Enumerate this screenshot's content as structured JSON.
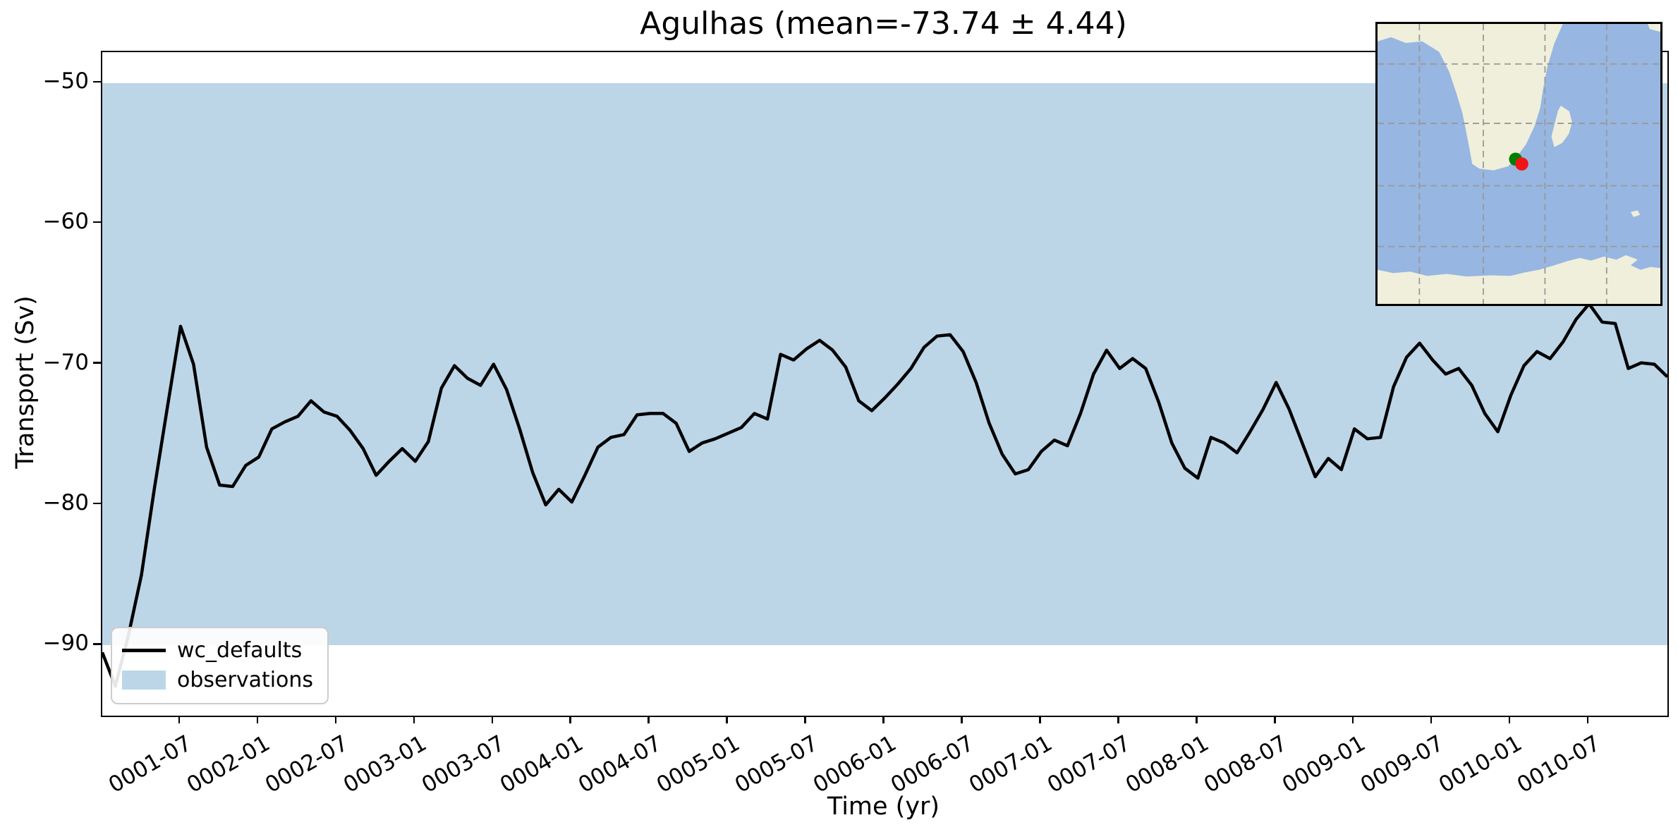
{
  "title": "Agulhas (mean=-73.74 ± 4.44)",
  "mean": -73.74,
  "std": 4.44,
  "legend": {
    "items": [
      {
        "label": "wc_defaults",
        "swatch": "line",
        "color": "#000000"
      },
      {
        "label": "observations",
        "swatch": "patch",
        "color": "#bcd6e8"
      }
    ]
  },
  "chart_data": {
    "type": "line",
    "title": "Agulhas (mean=-73.74 ± 4.44)",
    "xlabel": "Time (yr)",
    "ylabel": "Transport (Sv)",
    "ylim": [
      -95.0,
      -47.8
    ],
    "grid": false,
    "legend_position": "lower left",
    "x": {
      "start": "0001-01",
      "step": "1 month",
      "count": 121
    },
    "x_tick_labels": [
      "0001-07",
      "0002-01",
      "0002-07",
      "0003-01",
      "0003-07",
      "0004-01",
      "0004-07",
      "0005-01",
      "0005-07",
      "0006-01",
      "0006-07",
      "0007-01",
      "0007-07",
      "0008-01",
      "0008-07",
      "0009-01",
      "0009-07",
      "0010-01",
      "0010-07"
    ],
    "x_tick_month_indices": [
      6,
      12,
      18,
      24,
      30,
      36,
      42,
      48,
      54,
      60,
      66,
      72,
      78,
      84,
      90,
      96,
      102,
      108,
      114
    ],
    "y_ticks": [
      -50,
      -60,
      -70,
      -80,
      -90
    ],
    "y_tick_labels": [
      "−50",
      "−60",
      "−70",
      "−80",
      "−90"
    ],
    "band": {
      "label": "observations",
      "from": -90,
      "to": -50,
      "color": "#bcd6e8"
    },
    "series": [
      {
        "name": "wc_defaults",
        "color": "#000000",
        "linewidth": 4.5,
        "values": [
          -90.5,
          -92.9,
          -89.3,
          -85.0,
          -78.8,
          -73.0,
          -67.3,
          -70.0,
          -75.9,
          -78.6,
          -78.7,
          -77.2,
          -76.6,
          -74.6,
          -74.1,
          -73.7,
          -72.6,
          -73.4,
          -73.7,
          -74.7,
          -76.0,
          -77.9,
          -76.9,
          -76.0,
          -76.9,
          -75.5,
          -71.7,
          -70.1,
          -71.0,
          -71.5,
          -70.0,
          -71.8,
          -74.6,
          -77.7,
          -80.0,
          -78.9,
          -79.8,
          -77.9,
          -75.9,
          -75.2,
          -75.0,
          -73.6,
          -73.5,
          -73.5,
          -74.2,
          -76.2,
          -75.6,
          -75.3,
          -74.9,
          -74.5,
          -73.5,
          -73.9,
          -69.3,
          -69.7,
          -68.9,
          -68.3,
          -69.0,
          -70.2,
          -72.6,
          -73.3,
          -72.4,
          -71.4,
          -70.3,
          -68.8,
          -68.0,
          -67.9,
          -69.1,
          -71.3,
          -74.2,
          -76.4,
          -77.8,
          -77.5,
          -76.2,
          -75.4,
          -75.8,
          -73.5,
          -70.7,
          -69.0,
          -70.3,
          -69.6,
          -70.3,
          -72.7,
          -75.6,
          -77.4,
          -78.1,
          -75.2,
          -75.6,
          -76.3,
          -74.8,
          -73.2,
          -71.3,
          -73.2,
          -75.6,
          -78.0,
          -76.7,
          -77.5,
          -74.6,
          -75.3,
          -75.2,
          -71.6,
          -69.5,
          -68.5,
          -69.7,
          -70.7,
          -70.3,
          -71.5,
          -73.5,
          -74.8,
          -72.2,
          -70.1,
          -69.1,
          -69.6,
          -68.4,
          -66.8,
          -65.7,
          -67.0,
          -67.1,
          -70.3,
          -69.9,
          -70.0,
          -70.9
        ]
      }
    ]
  },
  "inset_map": {
    "ocean_color": "#97b6e1",
    "land_color": "#efefdb",
    "grid_color": "#999999",
    "grid_fx": [
      0.148,
      0.374,
      0.592,
      0.81
    ],
    "grid_fy": [
      0.143,
      0.355,
      0.578,
      0.795
    ],
    "markers": [
      {
        "name": "green-marker",
        "color": "#008000",
        "fx": 0.488,
        "fy": 0.483,
        "r": 9.3
      },
      {
        "name": "red-marker",
        "color": "#f01414",
        "fx": 0.51,
        "fy": 0.5,
        "r": 9.3
      }
    ],
    "land_polygons": {
      "africa": [
        [
          0,
          0
        ],
        [
          0.655,
          0
        ],
        [
          0.625,
          0.07
        ],
        [
          0.6,
          0.155
        ],
        [
          0.585,
          0.235
        ],
        [
          0.575,
          0.3
        ],
        [
          0.555,
          0.365
        ],
        [
          0.525,
          0.43
        ],
        [
          0.49,
          0.478
        ],
        [
          0.462,
          0.508
        ],
        [
          0.41,
          0.523
        ],
        [
          0.36,
          0.517
        ],
        [
          0.335,
          0.5
        ],
        [
          0.325,
          0.445
        ],
        [
          0.313,
          0.383
        ],
        [
          0.3,
          0.318
        ],
        [
          0.278,
          0.245
        ],
        [
          0.253,
          0.17
        ],
        [
          0.218,
          0.1
        ],
        [
          0.158,
          0.062
        ],
        [
          0.1,
          0.068
        ],
        [
          0.048,
          0.047
        ],
        [
          0,
          0.062
        ]
      ],
      "madagascar": [
        [
          0.648,
          0.292
        ],
        [
          0.678,
          0.312
        ],
        [
          0.688,
          0.352
        ],
        [
          0.676,
          0.393
        ],
        [
          0.653,
          0.425
        ],
        [
          0.625,
          0.44
        ],
        [
          0.615,
          0.402
        ],
        [
          0.628,
          0.35
        ],
        [
          0.638,
          0.31
        ]
      ],
      "antarctica": [
        [
          0,
          0.878
        ],
        [
          0.055,
          0.89
        ],
        [
          0.115,
          0.885
        ],
        [
          0.175,
          0.9
        ],
        [
          0.245,
          0.893
        ],
        [
          0.315,
          0.902
        ],
        [
          0.4,
          0.898
        ],
        [
          0.47,
          0.9
        ],
        [
          0.52,
          0.888
        ],
        [
          0.575,
          0.877
        ],
        [
          0.625,
          0.862
        ],
        [
          0.675,
          0.846
        ],
        [
          0.715,
          0.836
        ],
        [
          0.755,
          0.845
        ],
        [
          0.8,
          0.831
        ],
        [
          0.845,
          0.842
        ],
        [
          0.878,
          0.826
        ],
        [
          0.92,
          0.842
        ],
        [
          0.895,
          0.862
        ],
        [
          0.93,
          0.878
        ],
        [
          0.965,
          0.868
        ],
        [
          1,
          0.872
        ],
        [
          1,
          1
        ],
        [
          0,
          1
        ]
      ],
      "small_island": [
        [
          0.895,
          0.672
        ],
        [
          0.92,
          0.666
        ],
        [
          0.928,
          0.682
        ],
        [
          0.905,
          0.69
        ]
      ],
      "ne_sliver": [
        [
          0.955,
          0
        ],
        [
          1,
          0
        ],
        [
          1,
          0.028
        ],
        [
          0.962,
          0.018
        ]
      ]
    }
  }
}
